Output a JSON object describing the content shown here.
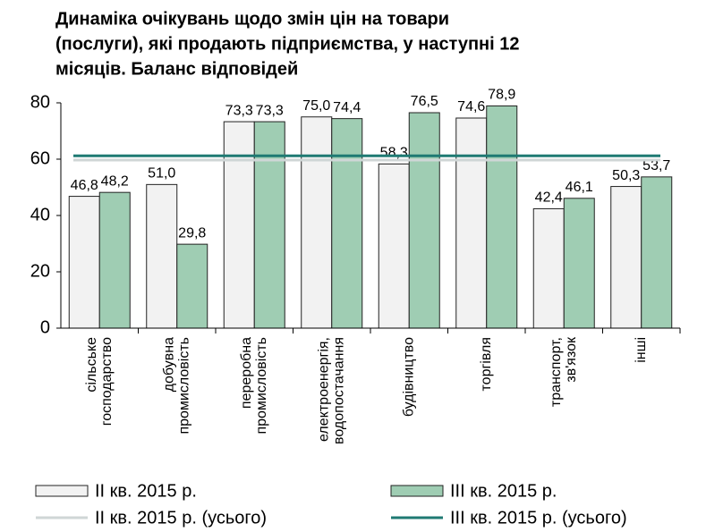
{
  "chart_data": {
    "type": "bar",
    "title": [
      "Динаміка очікувань щодо змін цін на товари",
      "(послуги), які продають підприємства, у наступні 12",
      "місяців. Баланс відповідей"
    ],
    "categories": [
      [
        "сільське",
        "господарство"
      ],
      [
        "добувна",
        "промисловість"
      ],
      [
        "переробна",
        "промисловість"
      ],
      [
        "електроенергія,",
        "водопостачання"
      ],
      [
        "будівництво"
      ],
      [
        "торгівля"
      ],
      [
        "транспорт,",
        "зв'язок"
      ],
      [
        "інші"
      ]
    ],
    "series": [
      {
        "name": "ІІ кв. 2015 р.",
        "color": "#f2f2f2",
        "values": [
          46.8,
          51.0,
          73.3,
          75.0,
          58.3,
          74.6,
          42.4,
          50.3
        ],
        "value_labels": [
          "46,8",
          "51,0",
          "73,3",
          "75,0",
          "58,3",
          "74,6",
          "42,4",
          "50,3"
        ]
      },
      {
        "name": "ІІІ кв. 2015 р.",
        "color": "#9fcdb3",
        "values": [
          48.2,
          29.8,
          73.3,
          74.4,
          76.5,
          78.9,
          46.1,
          53.7
        ],
        "value_labels": [
          "48,2",
          "29,8",
          "73,3",
          "74,4",
          "76,5",
          "78,9",
          "46,1",
          "53,7"
        ]
      }
    ],
    "hlines": [
      {
        "name": "ІІ кв. 2015 р. (усього)",
        "color": "#cfd6d6",
        "value": 59.7
      },
      {
        "name": "ІІІ кв. 2015 р. (усього)",
        "color": "#1f7a73",
        "value": 61.2
      }
    ],
    "ylim": [
      0,
      80
    ],
    "yticks": [
      0,
      20,
      40,
      60,
      80
    ]
  }
}
